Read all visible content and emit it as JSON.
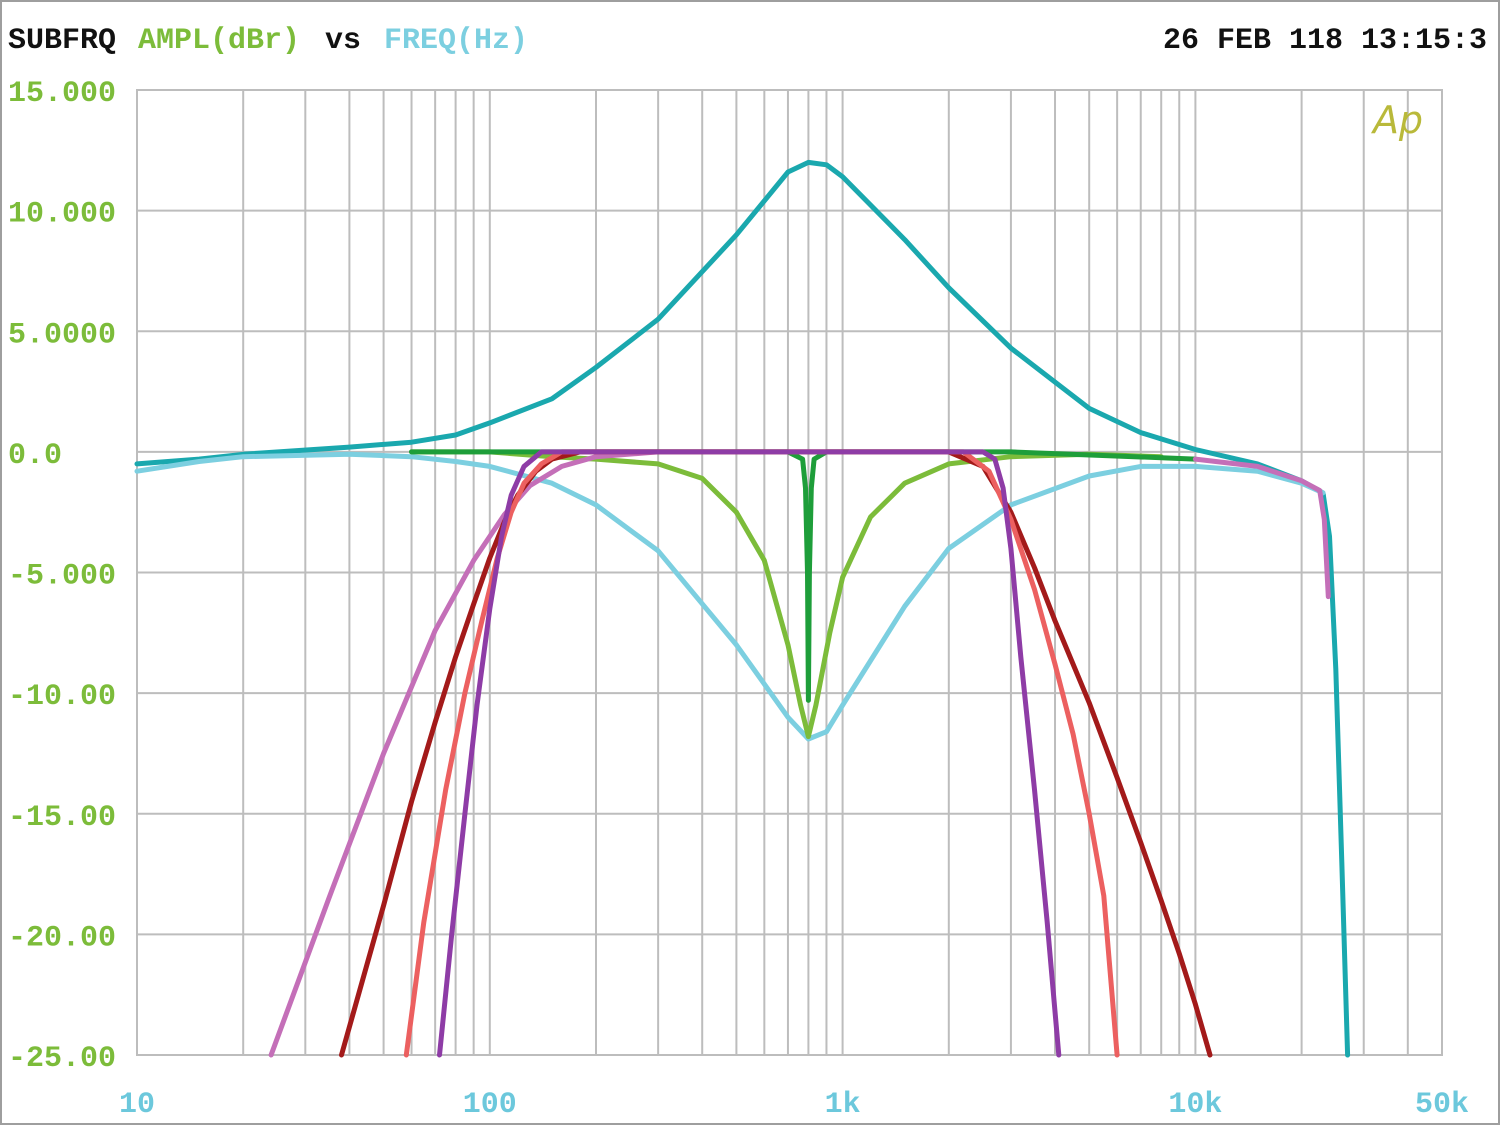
{
  "header": {
    "label_subfrq": "SUBFRQ",
    "label_ampl": "AMPL(dBr)",
    "label_vs": "vs",
    "label_freq": "FREQ(Hz)",
    "timestamp": "26 FEB 118 13:15:3",
    "logo": "Ap"
  },
  "colors": {
    "background": "#ffffff",
    "grid": "#bdbdbd",
    "border": "#9e9e9e",
    "header_text": "#111111",
    "ampl_label": "#7cbc3a",
    "freq_label": "#7ccfe0",
    "y_ticks": "#7cbc3a",
    "x_ticks": "#6cc8dc",
    "logo": "#b9b93a"
  },
  "chart_data": {
    "type": "line",
    "xscale": "log",
    "xlim": [
      10,
      50000
    ],
    "ylim": [
      -25,
      15
    ],
    "grid": true,
    "ylabel": "AMPL(dBr)",
    "xlabel": "FREQ(Hz)",
    "y_ticks": [
      {
        "value": 15,
        "label": "15.000"
      },
      {
        "value": 10,
        "label": "10.000"
      },
      {
        "value": 5,
        "label": "5.0000"
      },
      {
        "value": 0,
        "label": "0.0"
      },
      {
        "value": -5,
        "label": "-5.000"
      },
      {
        "value": -10,
        "label": "-10.00"
      },
      {
        "value": -15,
        "label": "-15.00"
      },
      {
        "value": -20,
        "label": "-20.00"
      },
      {
        "value": -25,
        "label": "-25.00"
      }
    ],
    "x_ticks": [
      {
        "value": 10,
        "label": "10"
      },
      {
        "value": 100,
        "label": "100"
      },
      {
        "value": 1000,
        "label": "1k"
      },
      {
        "value": 10000,
        "label": "10k"
      },
      {
        "value": 50000,
        "label": "50k"
      }
    ],
    "series": [
      {
        "color": "#1aa8ae",
        "points": [
          [
            10,
            -0.5
          ],
          [
            15,
            -0.3
          ],
          [
            20,
            -0.1
          ],
          [
            40,
            0.2
          ],
          [
            60,
            0.4
          ],
          [
            80,
            0.7
          ],
          [
            100,
            1.2
          ],
          [
            150,
            2.2
          ],
          [
            200,
            3.5
          ],
          [
            300,
            5.5
          ],
          [
            500,
            9.0
          ],
          [
            700,
            11.6
          ],
          [
            800,
            12.0
          ],
          [
            900,
            11.9
          ],
          [
            1000,
            11.4
          ],
          [
            1500,
            8.8
          ],
          [
            2000,
            6.8
          ],
          [
            3000,
            4.3
          ],
          [
            5000,
            1.8
          ],
          [
            7000,
            0.8
          ],
          [
            10000,
            0.1
          ],
          [
            15000,
            -0.5
          ],
          [
            20000,
            -1.2
          ],
          [
            23000,
            -1.7
          ],
          [
            24000,
            -3.5
          ],
          [
            25000,
            -9
          ],
          [
            26000,
            -17
          ],
          [
            27000,
            -25
          ]
        ]
      },
      {
        "color": "#7ccfe0",
        "points": [
          [
            10,
            -0.8
          ],
          [
            15,
            -0.4
          ],
          [
            20,
            -0.2
          ],
          [
            40,
            -0.1
          ],
          [
            60,
            -0.2
          ],
          [
            80,
            -0.4
          ],
          [
            100,
            -0.6
          ],
          [
            150,
            -1.3
          ],
          [
            200,
            -2.2
          ],
          [
            300,
            -4.1
          ],
          [
            500,
            -8.0
          ],
          [
            700,
            -11.0
          ],
          [
            800,
            -11.9
          ],
          [
            900,
            -11.6
          ],
          [
            1000,
            -10.5
          ],
          [
            1500,
            -6.4
          ],
          [
            2000,
            -4.0
          ],
          [
            3000,
            -2.2
          ],
          [
            5000,
            -1.0
          ],
          [
            7000,
            -0.6
          ],
          [
            10000,
            -0.6
          ],
          [
            15000,
            -0.8
          ],
          [
            20000,
            -1.3
          ],
          [
            23000,
            -1.7
          ]
        ]
      },
      {
        "color": "#7cbc3a",
        "points": [
          [
            60,
            0
          ],
          [
            100,
            0
          ],
          [
            150,
            -0.2
          ],
          [
            200,
            -0.3
          ],
          [
            300,
            -0.5
          ],
          [
            400,
            -1.1
          ],
          [
            500,
            -2.5
          ],
          [
            600,
            -4.5
          ],
          [
            700,
            -8
          ],
          [
            760,
            -10.5
          ],
          [
            800,
            -11.8
          ],
          [
            840,
            -10.5
          ],
          [
            920,
            -7.5
          ],
          [
            1000,
            -5.2
          ],
          [
            1200,
            -2.7
          ],
          [
            1500,
            -1.3
          ],
          [
            2000,
            -0.5
          ],
          [
            3000,
            -0.2
          ],
          [
            5000,
            -0.1
          ],
          [
            8000,
            -0.2
          ]
        ]
      },
      {
        "color": "#1e9e3a",
        "points": [
          [
            60,
            0
          ],
          [
            500,
            0
          ],
          [
            700,
            0
          ],
          [
            770,
            -0.3
          ],
          [
            785,
            -1.5
          ],
          [
            795,
            -5
          ],
          [
            800,
            -10.3
          ],
          [
            805,
            -5
          ],
          [
            815,
            -1.5
          ],
          [
            830,
            -0.3
          ],
          [
            900,
            0
          ],
          [
            3000,
            0
          ],
          [
            10000,
            -0.3
          ]
        ]
      },
      {
        "color": "#c46fb8",
        "points": [
          [
            24,
            -25
          ],
          [
            35,
            -18.5
          ],
          [
            50,
            -12.5
          ],
          [
            70,
            -7.4
          ],
          [
            90,
            -4.5
          ],
          [
            110,
            -2.6
          ],
          [
            130,
            -1.4
          ],
          [
            160,
            -0.6
          ],
          [
            200,
            -0.2
          ],
          [
            300,
            0
          ]
        ]
      },
      {
        "color": "#a31a1a",
        "points": [
          [
            38,
            -25
          ],
          [
            50,
            -18.8
          ],
          [
            60,
            -14.5
          ],
          [
            70,
            -11.2
          ],
          [
            80,
            -8.5
          ],
          [
            90,
            -6.3
          ],
          [
            100,
            -4.4
          ],
          [
            110,
            -2.9
          ],
          [
            120,
            -1.8
          ],
          [
            135,
            -0.8
          ],
          [
            150,
            -0.3
          ],
          [
            180,
            0
          ],
          [
            2000,
            0
          ],
          [
            2500,
            -0.6
          ],
          [
            3000,
            -2.5
          ],
          [
            3500,
            -4.8
          ],
          [
            4000,
            -7
          ],
          [
            5000,
            -10.4
          ],
          [
            6000,
            -13.5
          ],
          [
            7000,
            -16.2
          ],
          [
            8000,
            -18.6
          ],
          [
            9000,
            -20.8
          ],
          [
            10000,
            -22.9
          ],
          [
            11000,
            -25
          ]
        ]
      },
      {
        "color": "#ec6060",
        "points": [
          [
            58,
            -25
          ],
          [
            65,
            -19.5
          ],
          [
            75,
            -14
          ],
          [
            85,
            -10
          ],
          [
            95,
            -7
          ],
          [
            105,
            -4.4
          ],
          [
            115,
            -2.5
          ],
          [
            125,
            -1.3
          ],
          [
            140,
            -0.5
          ],
          [
            160,
            0
          ],
          [
            2200,
            0
          ],
          [
            2600,
            -0.8
          ],
          [
            3000,
            -2.8
          ],
          [
            3500,
            -5.7
          ],
          [
            4000,
            -8.8
          ],
          [
            4500,
            -11.7
          ],
          [
            5000,
            -15
          ],
          [
            5500,
            -18.4
          ],
          [
            6000,
            -25
          ]
        ]
      },
      {
        "color": "#8e3ca6",
        "points": [
          [
            72,
            -25
          ],
          [
            78,
            -20
          ],
          [
            85,
            -15
          ],
          [
            92,
            -10.5
          ],
          [
            100,
            -6.5
          ],
          [
            108,
            -3.5
          ],
          [
            115,
            -1.8
          ],
          [
            125,
            -0.6
          ],
          [
            140,
            0
          ],
          [
            300,
            0
          ],
          [
            2500,
            0
          ],
          [
            2700,
            -0.3
          ],
          [
            2850,
            -1.5
          ],
          [
            3000,
            -4
          ],
          [
            3200,
            -8.5
          ],
          [
            3500,
            -14
          ],
          [
            3800,
            -19.5
          ],
          [
            4100,
            -25
          ]
        ]
      },
      {
        "color": "#c46fb8",
        "points": [
          [
            10000,
            -0.3
          ],
          [
            15000,
            -0.6
          ],
          [
            20000,
            -1.2
          ],
          [
            22500,
            -1.6
          ],
          [
            23200,
            -2.8
          ],
          [
            23800,
            -6
          ]
        ]
      }
    ]
  }
}
